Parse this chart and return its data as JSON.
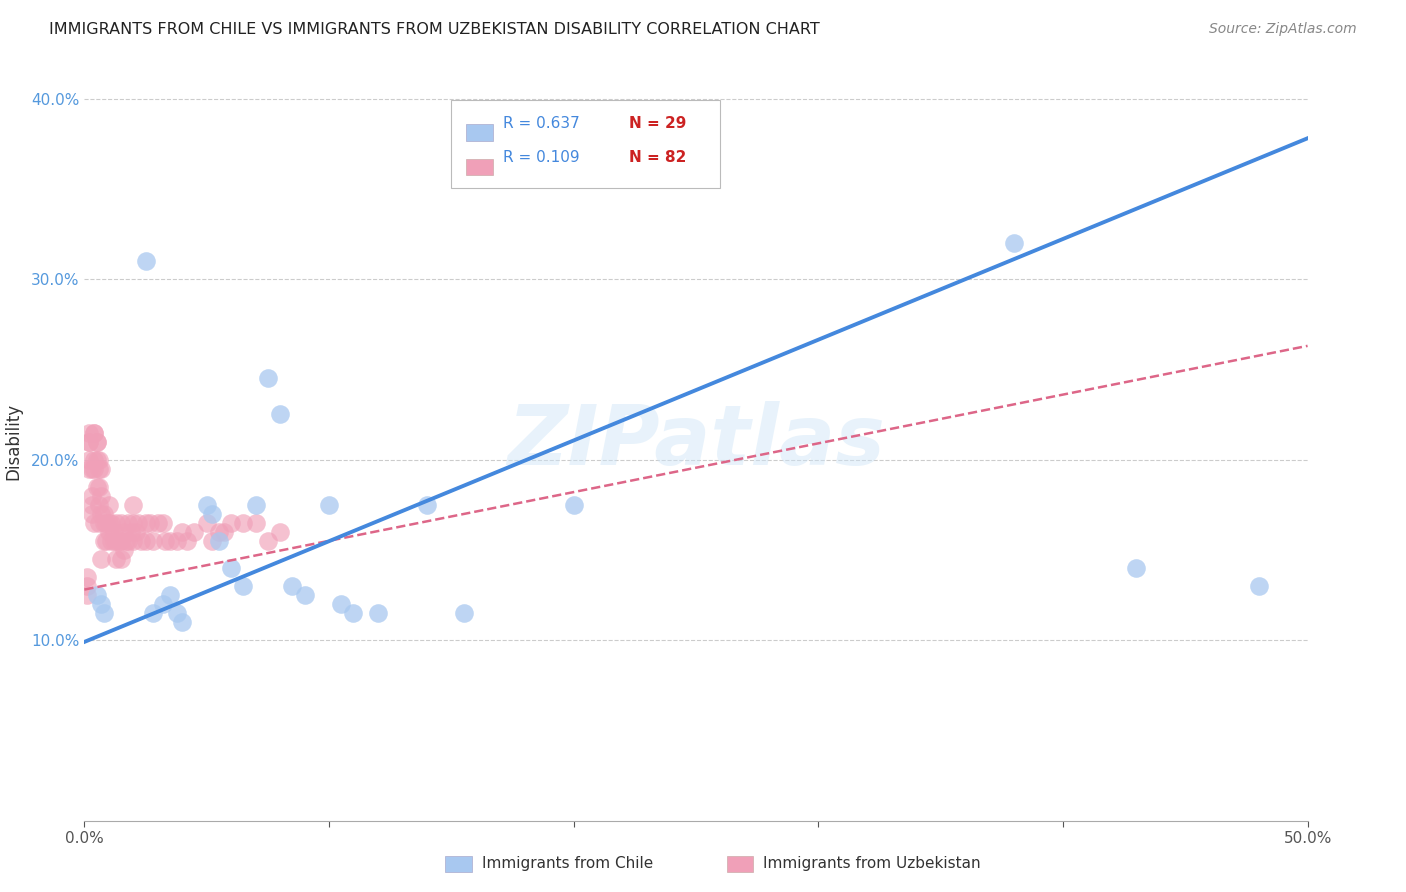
{
  "title": "IMMIGRANTS FROM CHILE VS IMMIGRANTS FROM UZBEKISTAN DISABILITY CORRELATION CHART",
  "source": "Source: ZipAtlas.com",
  "ylabel": "Disability",
  "xlim": [
    0.0,
    0.5
  ],
  "ylim": [
    0.0,
    0.42
  ],
  "xticks": [
    0.0,
    0.1,
    0.2,
    0.3,
    0.4,
    0.5
  ],
  "yticks": [
    0.1,
    0.2,
    0.3,
    0.4
  ],
  "xticklabels": [
    "0.0%",
    "",
    "",
    "",
    "",
    "50.0%"
  ],
  "yticklabels": [
    "10.0%",
    "20.0%",
    "30.0%",
    "40.0%"
  ],
  "legend_r_chile": "R = 0.637",
  "legend_n_chile": "N = 29",
  "legend_r_uzbekistan": "R = 0.109",
  "legend_n_uzbekistan": "N = 82",
  "chile_color": "#a8c8f0",
  "uzbekistan_color": "#f0a0b8",
  "chile_line_color": "#4488dd",
  "uzbekistan_line_color": "#dd6688",
  "watermark": "ZIPatlas",
  "chile_line_x0": 0.0,
  "chile_line_y0": 0.099,
  "chile_line_x1": 0.5,
  "chile_line_y1": 0.378,
  "uzbekistan_line_x0": 0.0,
  "uzbekistan_line_y0": 0.128,
  "uzbekistan_line_x1": 0.5,
  "uzbekistan_line_y1": 0.263,
  "chile_points_x": [
    0.005,
    0.007,
    0.008,
    0.025,
    0.028,
    0.032,
    0.035,
    0.038,
    0.04,
    0.05,
    0.052,
    0.055,
    0.06,
    0.065,
    0.07,
    0.075,
    0.08,
    0.085,
    0.09,
    0.1,
    0.105,
    0.11,
    0.12,
    0.14,
    0.155,
    0.2,
    0.38,
    0.43,
    0.48
  ],
  "chile_points_y": [
    0.125,
    0.12,
    0.115,
    0.31,
    0.115,
    0.12,
    0.125,
    0.115,
    0.11,
    0.175,
    0.17,
    0.155,
    0.14,
    0.13,
    0.175,
    0.245,
    0.225,
    0.13,
    0.125,
    0.175,
    0.12,
    0.115,
    0.115,
    0.175,
    0.115,
    0.175,
    0.32,
    0.14,
    0.13
  ],
  "uzbekistan_points_x": [
    0.001,
    0.001,
    0.001,
    0.002,
    0.002,
    0.002,
    0.002,
    0.002,
    0.003,
    0.003,
    0.003,
    0.003,
    0.004,
    0.004,
    0.004,
    0.004,
    0.004,
    0.005,
    0.005,
    0.005,
    0.005,
    0.006,
    0.006,
    0.006,
    0.006,
    0.006,
    0.007,
    0.007,
    0.007,
    0.007,
    0.008,
    0.008,
    0.008,
    0.009,
    0.009,
    0.01,
    0.01,
    0.01,
    0.011,
    0.011,
    0.012,
    0.012,
    0.013,
    0.013,
    0.013,
    0.014,
    0.015,
    0.015,
    0.015,
    0.016,
    0.016,
    0.017,
    0.018,
    0.018,
    0.019,
    0.02,
    0.02,
    0.02,
    0.021,
    0.022,
    0.023,
    0.025,
    0.025,
    0.027,
    0.028,
    0.03,
    0.032,
    0.033,
    0.035,
    0.038,
    0.04,
    0.042,
    0.045,
    0.05,
    0.052,
    0.055,
    0.057,
    0.06,
    0.065,
    0.07,
    0.075,
    0.08
  ],
  "uzbekistan_points_y": [
    0.13,
    0.135,
    0.125,
    0.21,
    0.215,
    0.21,
    0.2,
    0.195,
    0.195,
    0.18,
    0.175,
    0.17,
    0.215,
    0.215,
    0.2,
    0.195,
    0.165,
    0.21,
    0.21,
    0.2,
    0.185,
    0.2,
    0.195,
    0.185,
    0.175,
    0.165,
    0.195,
    0.18,
    0.17,
    0.145,
    0.17,
    0.165,
    0.155,
    0.165,
    0.155,
    0.175,
    0.165,
    0.16,
    0.165,
    0.155,
    0.16,
    0.155,
    0.165,
    0.155,
    0.145,
    0.155,
    0.165,
    0.155,
    0.145,
    0.16,
    0.15,
    0.155,
    0.165,
    0.155,
    0.16,
    0.175,
    0.165,
    0.155,
    0.16,
    0.165,
    0.155,
    0.165,
    0.155,
    0.165,
    0.155,
    0.165,
    0.165,
    0.155,
    0.155,
    0.155,
    0.16,
    0.155,
    0.16,
    0.165,
    0.155,
    0.16,
    0.16,
    0.165,
    0.165,
    0.165,
    0.155,
    0.16
  ]
}
